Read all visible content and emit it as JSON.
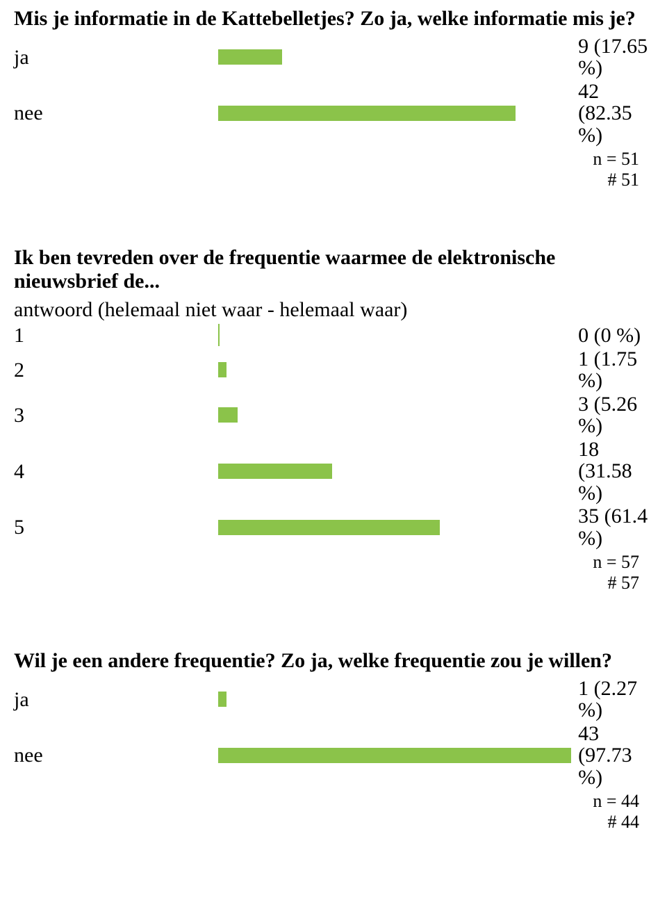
{
  "bar_color": "#8bc34a",
  "q1": {
    "title": "Mis je informatie in de Kattebelletjes? Zo ja, welke informatie mis je?",
    "rows": [
      {
        "label": "ja",
        "value_line1": "9 (17.65",
        "value_line2": "%)",
        "bar_pct": 17.65
      },
      {
        "label": "nee",
        "value_line1": "42 (82.35",
        "value_line2": "%)",
        "bar_pct": 82.35
      }
    ],
    "stats_line1": "n = 51",
    "stats_line2": "# 51"
  },
  "q2": {
    "title": "Ik ben tevreden over de frequentie waarmee de elektronische nieuwsbrief de...",
    "subtitle": "antwoord (helemaal niet waar - helemaal waar)",
    "rows": [
      {
        "label": "1",
        "value": "0 (0 %)",
        "bar_pct": 0,
        "tick": true
      },
      {
        "label": "2",
        "value": "1 (1.75 %)",
        "bar_pct": 1.75
      },
      {
        "label": "3",
        "value": "3 (5.26 %)",
        "bar_pct": 5.26
      },
      {
        "label": "4",
        "value_line1": "18 (31.58",
        "value_line2": "%)",
        "bar_pct": 31.58
      },
      {
        "label": "5",
        "value": "35 (61.4 %)",
        "bar_pct": 61.4
      }
    ],
    "stats_line1": "n = 57",
    "stats_line2": "# 57"
  },
  "q3": {
    "title": "Wil je een andere frequentie? Zo ja, welke frequentie zou je willen?",
    "rows": [
      {
        "label": "ja",
        "value_line1": "1 (2.27",
        "value_line2": "%)",
        "bar_pct": 2.27
      },
      {
        "label": "nee",
        "value_line1": "43 (97.73",
        "value_line2": "%)",
        "bar_pct": 97.73
      }
    ],
    "stats_line1": "n = 44",
    "stats_line2": "# 44"
  }
}
